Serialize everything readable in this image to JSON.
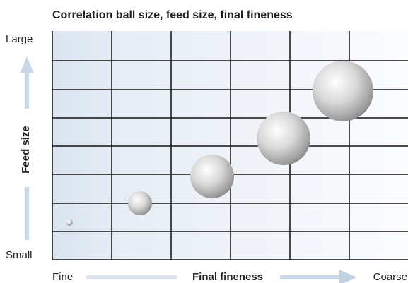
{
  "title": "Correlation ball size, feed size, final fineness",
  "y_axis": {
    "label": "Feed size",
    "top": "Large",
    "bottom": "Small"
  },
  "x_axis": {
    "label": "Final fineness",
    "left": "Fine",
    "right": "Coarse"
  }
}
